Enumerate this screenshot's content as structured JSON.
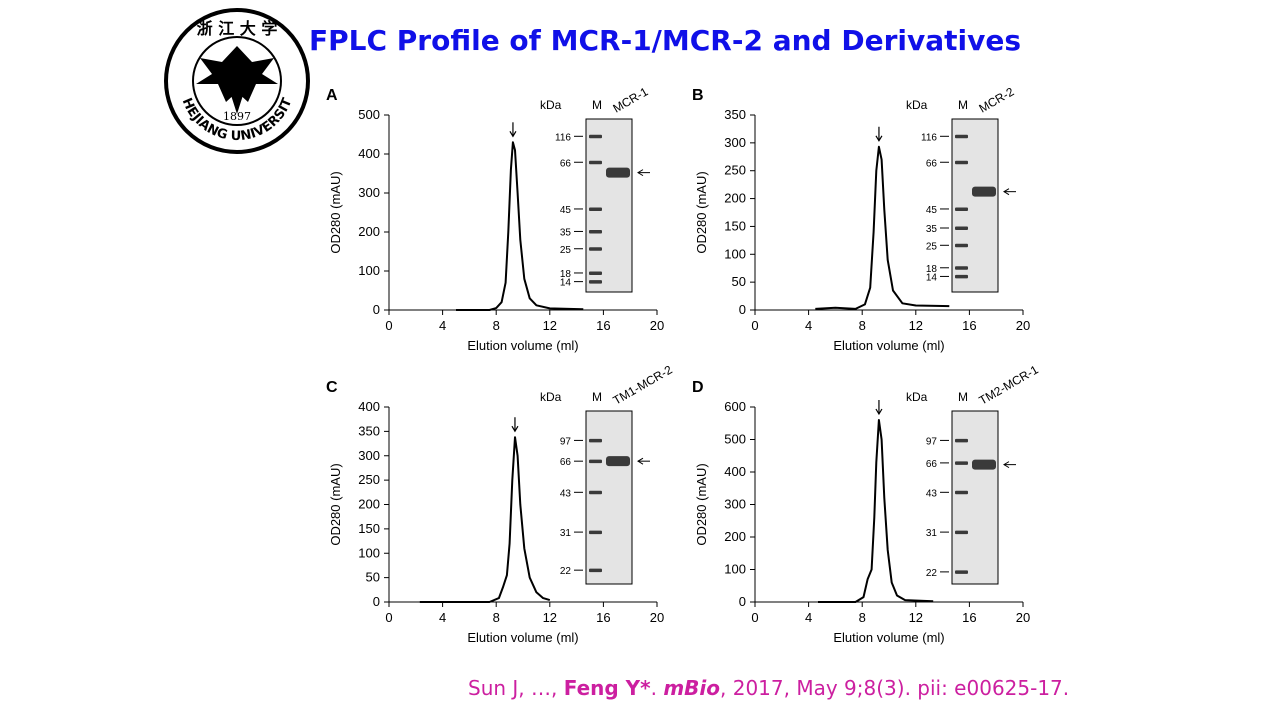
{
  "title": "FPLC Profile of MCR-1/MCR-2 and Derivatives",
  "logo": {
    "name": "ZHEJIANG UNIVERSITY",
    "year": "1897",
    "chars": "浙 江 大 学"
  },
  "citation": {
    "prefix": "Sun J, …, ",
    "author": "Feng Y*",
    "sep": ". ",
    "journal": "mBio",
    "rest": ", 2017, May 9;8(3). pii: e00625-17."
  },
  "colors": {
    "title": "#1010e8",
    "citation": "#cc1fa0",
    "trace": "#000000",
    "gel_bg": "#e4e4e4",
    "band": "#3a3a3a"
  },
  "chart_data": [
    {
      "panel": "A",
      "type": "line",
      "xlabel": "Elution volume (ml)",
      "ylabel": "OD280 (mAU)",
      "xlim": [
        0,
        20
      ],
      "ylim": [
        0,
        500
      ],
      "xticks": [
        0,
        4,
        8,
        12,
        16,
        20
      ],
      "yticks": [
        0,
        100,
        200,
        300,
        400,
        500
      ],
      "trace": {
        "x": [
          5,
          7.5,
          8,
          8.4,
          8.7,
          8.9,
          9.1,
          9.25,
          9.4,
          9.6,
          9.8,
          10.1,
          10.5,
          11,
          12,
          14.5
        ],
        "y": [
          0,
          0,
          5,
          20,
          70,
          200,
          360,
          430,
          410,
          300,
          180,
          80,
          30,
          12,
          4,
          2
        ]
      },
      "peak_arrow_x": 9.25,
      "gel": {
        "unit": "kDa",
        "marker_lane": "M",
        "sample_lane": "MCR-1",
        "markers": [
          {
            "label": "116",
            "pos": 0.1
          },
          {
            "label": "66",
            "pos": 0.25
          },
          {
            "label": "45",
            "pos": 0.52
          },
          {
            "label": "35",
            "pos": 0.65
          },
          {
            "label": "25",
            "pos": 0.75
          },
          {
            "label": "18",
            "pos": 0.89
          },
          {
            "label": "14",
            "pos": 0.94
          }
        ],
        "target_pos": 0.31
      }
    },
    {
      "panel": "B",
      "type": "line",
      "xlabel": "Elution volume (ml)",
      "ylabel": "OD280 (mAU)",
      "xlim": [
        0,
        20
      ],
      "ylim": [
        0,
        350
      ],
      "xticks": [
        0,
        4,
        8,
        12,
        16,
        20
      ],
      "yticks": [
        0,
        50,
        100,
        150,
        200,
        250,
        300,
        350
      ],
      "trace": {
        "x": [
          4.5,
          6,
          7.5,
          8.2,
          8.6,
          8.85,
          9.05,
          9.25,
          9.45,
          9.65,
          9.9,
          10.3,
          11,
          12,
          14.5
        ],
        "y": [
          2,
          4,
          2,
          10,
          40,
          140,
          250,
          293,
          270,
          180,
          90,
          35,
          12,
          8,
          7
        ]
      },
      "peak_arrow_x": 9.25,
      "gel": {
        "unit": "kDa",
        "marker_lane": "M",
        "sample_lane": "MCR-2",
        "markers": [
          {
            "label": "116",
            "pos": 0.1
          },
          {
            "label": "66",
            "pos": 0.25
          },
          {
            "label": "45",
            "pos": 0.52
          },
          {
            "label": "35",
            "pos": 0.63
          },
          {
            "label": "25",
            "pos": 0.73
          },
          {
            "label": "18",
            "pos": 0.86
          },
          {
            "label": "14",
            "pos": 0.91
          }
        ],
        "target_pos": 0.42
      }
    },
    {
      "panel": "C",
      "type": "line",
      "xlabel": "Elution volume (ml)",
      "ylabel": "OD280 (mAU)",
      "xlim": [
        0,
        20
      ],
      "ylim": [
        0,
        400
      ],
      "xticks": [
        0,
        4,
        8,
        12,
        16,
        20
      ],
      "yticks": [
        0,
        50,
        100,
        150,
        200,
        250,
        300,
        350,
        400
      ],
      "trace": {
        "x": [
          2.3,
          7.5,
          8.2,
          8.5,
          8.8,
          9.0,
          9.2,
          9.4,
          9.6,
          9.8,
          10.1,
          10.5,
          11,
          11.5,
          12
        ],
        "y": [
          0,
          0,
          8,
          30,
          55,
          120,
          250,
          338,
          300,
          200,
          110,
          50,
          20,
          8,
          4
        ]
      },
      "peak_arrow_x": 9.4,
      "gel": {
        "unit": "kDa",
        "marker_lane": "M",
        "sample_lane": "TM1-MCR-2",
        "markers": [
          {
            "label": "97",
            "pos": 0.17
          },
          {
            "label": "66",
            "pos": 0.29
          },
          {
            "label": "43",
            "pos": 0.47
          },
          {
            "label": "31",
            "pos": 0.7
          },
          {
            "label": "22",
            "pos": 0.92
          }
        ],
        "target_pos": 0.29
      }
    },
    {
      "panel": "D",
      "type": "line",
      "xlabel": "Elution volume (ml)",
      "ylabel": "OD280 (mAU)",
      "xlim": [
        0,
        20
      ],
      "ylim": [
        0,
        600
      ],
      "xticks": [
        0,
        4,
        8,
        12,
        16,
        20
      ],
      "yticks": [
        0,
        100,
        200,
        300,
        400,
        500,
        600
      ],
      "trace": {
        "x": [
          4.7,
          7.5,
          8.1,
          8.4,
          8.7,
          8.9,
          9.05,
          9.25,
          9.45,
          9.65,
          9.9,
          10.2,
          10.6,
          11.2,
          13.3
        ],
        "y": [
          0,
          0,
          15,
          70,
          100,
          260,
          430,
          560,
          500,
          320,
          160,
          60,
          20,
          6,
          2
        ]
      },
      "peak_arrow_x": 9.25,
      "gel": {
        "unit": "kDa",
        "marker_lane": "M",
        "sample_lane": "TM2-MCR-1",
        "markers": [
          {
            "label": "97",
            "pos": 0.17
          },
          {
            "label": "66",
            "pos": 0.3
          },
          {
            "label": "43",
            "pos": 0.47
          },
          {
            "label": "31",
            "pos": 0.7
          },
          {
            "label": "22",
            "pos": 0.93
          }
        ],
        "target_pos": 0.31
      }
    }
  ]
}
